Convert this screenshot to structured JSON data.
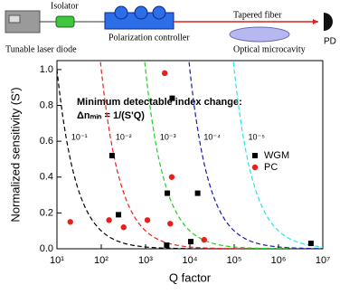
{
  "diagram": {
    "laser": "Tunable laser diode",
    "isolator": "Isolator",
    "polarization": "Polarization controller",
    "fiber": "Tapered fiber",
    "cavity": "Optical microcavity",
    "detector": "PD"
  },
  "chart_data": {
    "type": "scatter",
    "xlabel": "Q factor",
    "ylabel": "Normalized sensitivity (S')",
    "annotation": [
      "Minimum detectable index change:",
      "Δnₘᵢₙ = 1/(S'Q)"
    ],
    "xlog": true,
    "xlim": [
      10,
      10000000
    ],
    "xticks": [
      {
        "value": 10,
        "label": "10¹"
      },
      {
        "value": 100,
        "label": "10²"
      },
      {
        "value": 1000,
        "label": "10³"
      },
      {
        "value": 10000,
        "label": "10⁴"
      },
      {
        "value": 100000,
        "label": "10⁵"
      },
      {
        "value": 1000000,
        "label": "10⁶"
      },
      {
        "value": 10000000,
        "label": "10⁷"
      }
    ],
    "ylim": [
      0,
      1.05
    ],
    "yticks": [
      {
        "value": 0,
        "label": "0.0"
      },
      0.2,
      0.4,
      0.6,
      0.8,
      {
        "value": 1,
        "label": "1.0"
      }
    ],
    "curves": [
      {
        "label": "10⁻¹",
        "value": 0.1,
        "color": "#000000"
      },
      {
        "label": "10⁻²",
        "value": 0.01,
        "color": "#e8201c"
      },
      {
        "label": "10⁻³",
        "value": 0.001,
        "color": "#20d020"
      },
      {
        "label": "10⁻⁴",
        "value": 0.0001,
        "color": "#1a1aa8"
      },
      {
        "label": "10⁻⁵",
        "value": 1e-05,
        "color": "#20e8e8"
      }
    ],
    "legend": "upper right",
    "series": [
      {
        "name": "WGM",
        "color": "#000000",
        "marker": "square",
        "x": [
          175,
          245,
          4000,
          3100,
          3000,
          10500,
          15000,
          5400000
        ],
        "values": [
          0.52,
          0.19,
          0.84,
          0.31,
          0.02,
          0.04,
          0.31,
          0.03
        ]
      },
      {
        "name": "PC",
        "color": "#e8201c",
        "marker": "circle",
        "x": [
          20,
          150,
          320,
          1100,
          2700,
          3900,
          3600,
          21000
        ],
        "values": [
          0.15,
          0.16,
          0.12,
          0.16,
          0.98,
          0.4,
          0.14,
          0.05
        ]
      }
    ]
  }
}
